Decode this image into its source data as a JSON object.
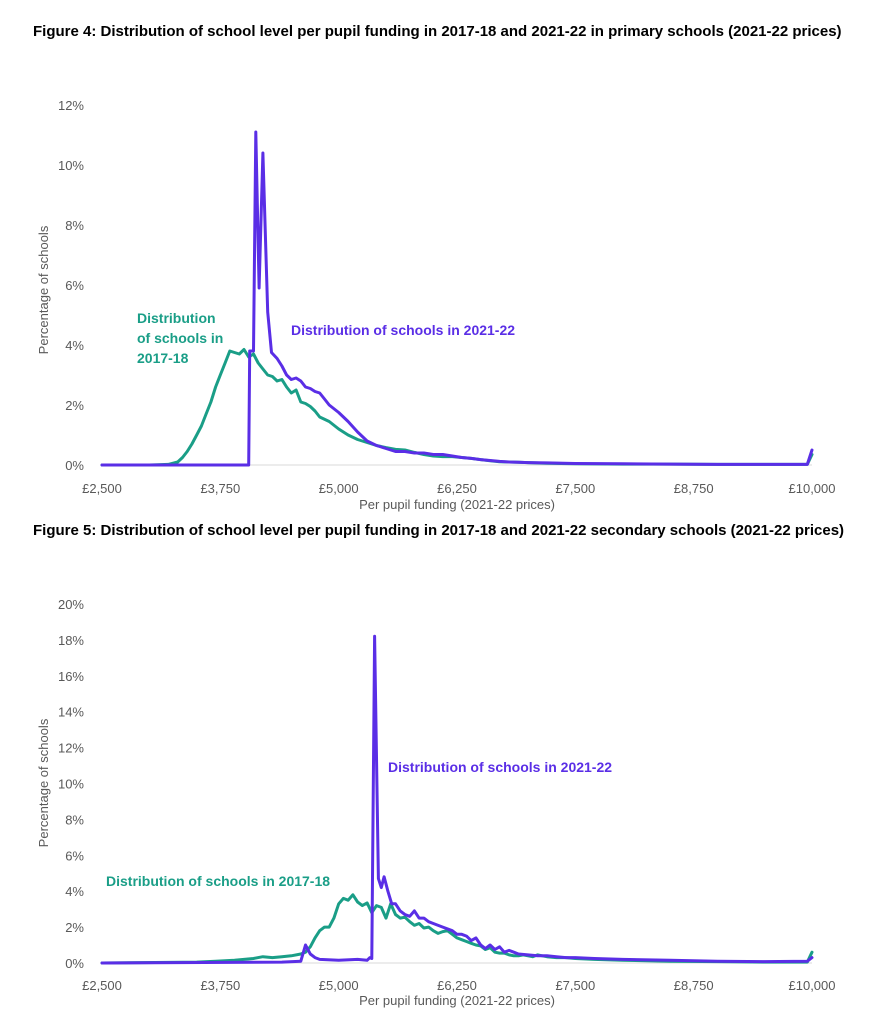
{
  "figures": [
    {
      "title": "Figure 4: Distribution of school level per pupil funding in 2017-18 and 2021-22 in primary schools (2021-22 prices)"
    },
    {
      "title": "Figure 5: Distribution of school level per pupil funding in 2017-18 and 2021-22 secondary schools (2021-22 prices)"
    }
  ],
  "colors": {
    "series_2017": "#1a9e87",
    "series_2021": "#5a2ee6",
    "baseline": "#d9d9d9",
    "tick_text": "#595959"
  },
  "chart_data": [
    {
      "type": "line",
      "xlabel": "Per pupil funding (2021-22 prices)",
      "ylabel": "Percentage of schools",
      "x_ticks": [
        "£2,500",
        "£3,750",
        "£5,000",
        "£6,250",
        "£7,500",
        "£8,750",
        "£10,000"
      ],
      "x_tick_values": [
        2500,
        3750,
        5000,
        6250,
        7500,
        8750,
        10000
      ],
      "y_ticks": [
        "0%",
        "2%",
        "4%",
        "6%",
        "8%",
        "10%",
        "12%"
      ],
      "y_tick_values": [
        0,
        2,
        4,
        6,
        8,
        10,
        12
      ],
      "xlim": [
        2500,
        10000
      ],
      "ylim": [
        0,
        12
      ],
      "grid": false,
      "annotations": [
        {
          "series": "2017",
          "lines": [
            "Distribution",
            "of schools in",
            "2017-18"
          ]
        },
        {
          "series": "2021",
          "lines": [
            "Distribution of schools in 2021-22"
          ]
        }
      ],
      "series": [
        {
          "key": "2017",
          "points": [
            [
              2500,
              0
            ],
            [
              3000,
              0
            ],
            [
              3200,
              0.02
            ],
            [
              3300,
              0.1
            ],
            [
              3350,
              0.25
            ],
            [
              3400,
              0.45
            ],
            [
              3450,
              0.7
            ],
            [
              3500,
              1.0
            ],
            [
              3550,
              1.3
            ],
            [
              3600,
              1.7
            ],
            [
              3650,
              2.1
            ],
            [
              3700,
              2.6
            ],
            [
              3750,
              3.0
            ],
            [
              3800,
              3.4
            ],
            [
              3850,
              3.8
            ],
            [
              3900,
              3.75
            ],
            [
              3950,
              3.7
            ],
            [
              4000,
              3.85
            ],
            [
              4050,
              3.6
            ],
            [
              4100,
              3.7
            ],
            [
              4150,
              3.4
            ],
            [
              4200,
              3.2
            ],
            [
              4250,
              3.0
            ],
            [
              4300,
              2.95
            ],
            [
              4350,
              2.8
            ],
            [
              4400,
              2.85
            ],
            [
              4450,
              2.6
            ],
            [
              4500,
              2.4
            ],
            [
              4550,
              2.5
            ],
            [
              4600,
              2.1
            ],
            [
              4650,
              2.05
            ],
            [
              4700,
              1.95
            ],
            [
              4750,
              1.8
            ],
            [
              4800,
              1.6
            ],
            [
              4900,
              1.45
            ],
            [
              5000,
              1.2
            ],
            [
              5100,
              1.0
            ],
            [
              5200,
              0.85
            ],
            [
              5300,
              0.75
            ],
            [
              5400,
              0.65
            ],
            [
              5500,
              0.58
            ],
            [
              5600,
              0.52
            ],
            [
              5700,
              0.5
            ],
            [
              5800,
              0.42
            ],
            [
              5900,
              0.35
            ],
            [
              6000,
              0.3
            ],
            [
              6100,
              0.28
            ],
            [
              6200,
              0.28
            ],
            [
              6300,
              0.25
            ],
            [
              6400,
              0.22
            ],
            [
              6500,
              0.18
            ],
            [
              6600,
              0.14
            ],
            [
              6700,
              0.11
            ],
            [
              6800,
              0.1
            ],
            [
              6900,
              0.09
            ],
            [
              7000,
              0.08
            ],
            [
              7200,
              0.06
            ],
            [
              7500,
              0.04
            ],
            [
              8000,
              0.03
            ],
            [
              8500,
              0.03
            ],
            [
              9000,
              0.02
            ],
            [
              9500,
              0.02
            ],
            [
              9950,
              0.02
            ],
            [
              10000,
              0.35
            ]
          ]
        },
        {
          "key": "2021",
          "points": [
            [
              2500,
              0
            ],
            [
              4050,
              0
            ],
            [
              4060,
              3.8
            ],
            [
              4100,
              3.8
            ],
            [
              4125,
              11.1
            ],
            [
              4160,
              5.9
            ],
            [
              4200,
              10.4
            ],
            [
              4250,
              5.1
            ],
            [
              4290,
              3.75
            ],
            [
              4350,
              3.55
            ],
            [
              4400,
              3.3
            ],
            [
              4450,
              3.0
            ],
            [
              4500,
              2.85
            ],
            [
              4550,
              2.9
            ],
            [
              4600,
              2.8
            ],
            [
              4650,
              2.6
            ],
            [
              4700,
              2.55
            ],
            [
              4750,
              2.45
            ],
            [
              4800,
              2.4
            ],
            [
              4850,
              2.2
            ],
            [
              4900,
              2.0
            ],
            [
              5000,
              1.75
            ],
            [
              5100,
              1.45
            ],
            [
              5200,
              1.1
            ],
            [
              5300,
              0.8
            ],
            [
              5400,
              0.65
            ],
            [
              5500,
              0.55
            ],
            [
              5600,
              0.45
            ],
            [
              5700,
              0.45
            ],
            [
              5800,
              0.4
            ],
            [
              5900,
              0.4
            ],
            [
              6000,
              0.35
            ],
            [
              6100,
              0.35
            ],
            [
              6200,
              0.3
            ],
            [
              6300,
              0.25
            ],
            [
              6400,
              0.22
            ],
            [
              6500,
              0.18
            ],
            [
              6600,
              0.15
            ],
            [
              6700,
              0.12
            ],
            [
              6800,
              0.1
            ],
            [
              6900,
              0.09
            ],
            [
              7000,
              0.08
            ],
            [
              7200,
              0.07
            ],
            [
              7500,
              0.05
            ],
            [
              8000,
              0.04
            ],
            [
              8500,
              0.03
            ],
            [
              9000,
              0.02
            ],
            [
              9500,
              0.02
            ],
            [
              9950,
              0.02
            ],
            [
              10000,
              0.5
            ]
          ]
        }
      ]
    },
    {
      "type": "line",
      "xlabel": "Per pupil funding (2021-22 prices)",
      "ylabel": "Percentage of schools",
      "x_ticks": [
        "£2,500",
        "£3,750",
        "£5,000",
        "£6,250",
        "£7,500",
        "£8,750",
        "£10,000"
      ],
      "x_tick_values": [
        2500,
        3750,
        5000,
        6250,
        7500,
        8750,
        10000
      ],
      "y_ticks": [
        "0%",
        "2%",
        "4%",
        "6%",
        "8%",
        "10%",
        "12%",
        "14%",
        "16%",
        "18%",
        "20%"
      ],
      "y_tick_values": [
        0,
        2,
        4,
        6,
        8,
        10,
        12,
        14,
        16,
        18,
        20
      ],
      "xlim": [
        2500,
        10000
      ],
      "ylim": [
        0,
        20
      ],
      "grid": false,
      "annotations": [
        {
          "series": "2017",
          "lines": [
            "Distribution of schools in 2017-18"
          ]
        },
        {
          "series": "2021",
          "lines": [
            "Distribution of schools in 2021-22"
          ]
        }
      ],
      "series": [
        {
          "key": "2017",
          "points": [
            [
              2500,
              0
            ],
            [
              3500,
              0.05
            ],
            [
              3700,
              0.1
            ],
            [
              3900,
              0.15
            ],
            [
              4000,
              0.2
            ],
            [
              4100,
              0.25
            ],
            [
              4200,
              0.35
            ],
            [
              4300,
              0.3
            ],
            [
              4400,
              0.35
            ],
            [
              4500,
              0.4
            ],
            [
              4600,
              0.5
            ],
            [
              4650,
              0.6
            ],
            [
              4700,
              0.9
            ],
            [
              4750,
              1.4
            ],
            [
              4800,
              1.8
            ],
            [
              4850,
              2.0
            ],
            [
              4900,
              2.0
            ],
            [
              4950,
              2.5
            ],
            [
              5000,
              3.3
            ],
            [
              5050,
              3.6
            ],
            [
              5100,
              3.5
            ],
            [
              5150,
              3.8
            ],
            [
              5200,
              3.4
            ],
            [
              5250,
              3.2
            ],
            [
              5300,
              3.35
            ],
            [
              5350,
              2.8
            ],
            [
              5400,
              3.2
            ],
            [
              5450,
              3.1
            ],
            [
              5500,
              2.5
            ],
            [
              5550,
              3.3
            ],
            [
              5600,
              2.7
            ],
            [
              5650,
              2.5
            ],
            [
              5700,
              2.55
            ],
            [
              5750,
              2.3
            ],
            [
              5800,
              2.1
            ],
            [
              5850,
              2.2
            ],
            [
              5900,
              1.95
            ],
            [
              5950,
              2.0
            ],
            [
              6000,
              1.8
            ],
            [
              6050,
              1.65
            ],
            [
              6100,
              1.75
            ],
            [
              6150,
              1.8
            ],
            [
              6200,
              1.6
            ],
            [
              6250,
              1.4
            ],
            [
              6300,
              1.3
            ],
            [
              6350,
              1.2
            ],
            [
              6400,
              1.1
            ],
            [
              6450,
              1.0
            ],
            [
              6500,
              0.95
            ],
            [
              6550,
              0.75
            ],
            [
              6600,
              0.85
            ],
            [
              6650,
              0.6
            ],
            [
              6700,
              0.55
            ],
            [
              6750,
              0.55
            ],
            [
              6800,
              0.45
            ],
            [
              6850,
              0.4
            ],
            [
              6900,
              0.4
            ],
            [
              6950,
              0.45
            ],
            [
              7000,
              0.4
            ],
            [
              7050,
              0.35
            ],
            [
              7100,
              0.45
            ],
            [
              7150,
              0.4
            ],
            [
              7200,
              0.35
            ],
            [
              7300,
              0.3
            ],
            [
              7400,
              0.3
            ],
            [
              7500,
              0.25
            ],
            [
              7700,
              0.2
            ],
            [
              8000,
              0.15
            ],
            [
              8500,
              0.1
            ],
            [
              9000,
              0.08
            ],
            [
              9500,
              0.05
            ],
            [
              9950,
              0.05
            ],
            [
              10000,
              0.6
            ]
          ]
        },
        {
          "key": "2021",
          "points": [
            [
              2500,
              0
            ],
            [
              4400,
              0.05
            ],
            [
              4600,
              0.1
            ],
            [
              4650,
              1.0
            ],
            [
              4700,
              0.5
            ],
            [
              4750,
              0.3
            ],
            [
              4800,
              0.2
            ],
            [
              5000,
              0.15
            ],
            [
              5200,
              0.2
            ],
            [
              5300,
              0.15
            ],
            [
              5330,
              0.3
            ],
            [
              5350,
              0.25
            ],
            [
              5380,
              18.2
            ],
            [
              5420,
              4.7
            ],
            [
              5450,
              4.2
            ],
            [
              5480,
              4.8
            ],
            [
              5520,
              4.0
            ],
            [
              5560,
              3.3
            ],
            [
              5600,
              3.3
            ],
            [
              5650,
              2.9
            ],
            [
              5700,
              2.7
            ],
            [
              5750,
              2.6
            ],
            [
              5800,
              2.9
            ],
            [
              5850,
              2.5
            ],
            [
              5900,
              2.5
            ],
            [
              5950,
              2.3
            ],
            [
              6000,
              2.2
            ],
            [
              6100,
              2.0
            ],
            [
              6200,
              1.8
            ],
            [
              6250,
              1.6
            ],
            [
              6300,
              1.6
            ],
            [
              6350,
              1.5
            ],
            [
              6400,
              1.25
            ],
            [
              6450,
              1.4
            ],
            [
              6500,
              1.0
            ],
            [
              6550,
              0.8
            ],
            [
              6600,
              1.0
            ],
            [
              6650,
              0.75
            ],
            [
              6700,
              0.9
            ],
            [
              6750,
              0.6
            ],
            [
              6800,
              0.7
            ],
            [
              6850,
              0.6
            ],
            [
              6900,
              0.5
            ],
            [
              7000,
              0.45
            ],
            [
              7100,
              0.4
            ],
            [
              7200,
              0.4
            ],
            [
              7300,
              0.35
            ],
            [
              7400,
              0.3
            ],
            [
              7500,
              0.3
            ],
            [
              7700,
              0.25
            ],
            [
              8000,
              0.2
            ],
            [
              8500,
              0.15
            ],
            [
              9000,
              0.1
            ],
            [
              9500,
              0.08
            ],
            [
              9950,
              0.1
            ],
            [
              10000,
              0.3
            ]
          ]
        }
      ]
    }
  ]
}
